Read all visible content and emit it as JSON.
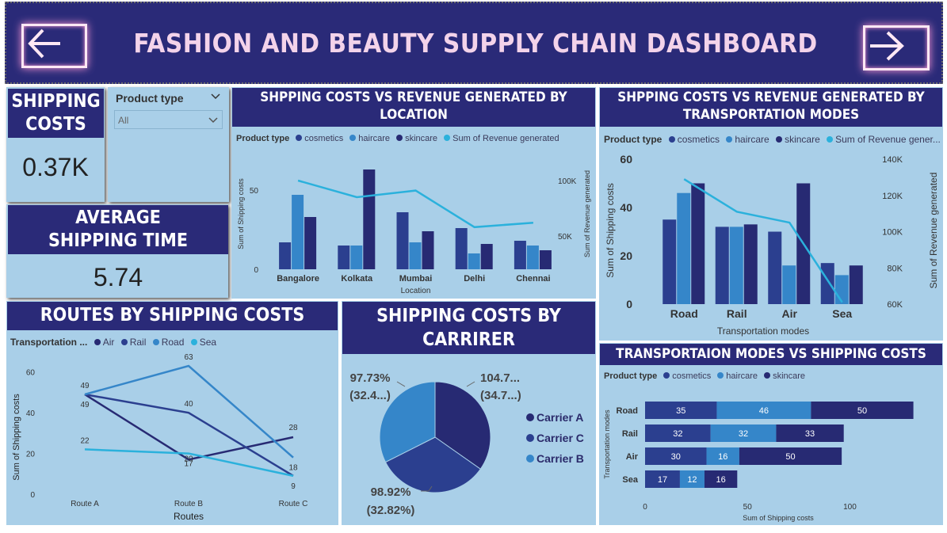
{
  "header": {
    "title": "FASHION AND BEAUTY SUPPLY CHAIN DASHBOARD",
    "back_icon": "arrow-left-icon",
    "next_icon": "arrow-right-icon"
  },
  "kpi_shipping": {
    "title": "SHIPPING COSTS",
    "value": "0.37K"
  },
  "kpi_time": {
    "title": "AVERAGE SHIPPING TIME",
    "value": "5.74"
  },
  "filter": {
    "label": "Product type",
    "value": "All"
  },
  "colors": {
    "cosmetics": "#2b3f8f",
    "haircare": "#3586c9",
    "skincare": "#272a73",
    "revenue": "#2bb1dc",
    "navy": "#2a2a78",
    "panel": "#a9cfe8"
  },
  "chart_data": [
    {
      "id": "location",
      "type": "bar",
      "title": "SHPPING COSTS VS REVENUE GENERATED BY LOCATION",
      "legend_title": "Product type",
      "legend": [
        "cosmetics",
        "haircare",
        "skincare",
        "Sum of Revenue generated"
      ],
      "categories": [
        "Bangalore",
        "Kolkata",
        "Mumbai",
        "Delhi",
        "Chennai"
      ],
      "series": [
        {
          "name": "cosmetics",
          "values": [
            17,
            15,
            36,
            26,
            18
          ]
        },
        {
          "name": "haircare",
          "values": [
            47,
            15,
            17,
            10,
            15
          ]
        },
        {
          "name": "skincare",
          "values": [
            33,
            63,
            24,
            16,
            12
          ]
        }
      ],
      "line": {
        "name": "Sum of Revenue generated",
        "values": [
          100000,
          85000,
          91000,
          58000,
          62000
        ]
      },
      "xlabel": "Location",
      "ylabel": "Sum of Shipping costs",
      "y2label": "Sum of Revenue generated",
      "yticks": [
        "0",
        "50"
      ],
      "y2ticks": [
        "50K",
        "100K"
      ],
      "ylim": [
        0,
        70
      ],
      "y2lim": [
        20000,
        120000
      ]
    },
    {
      "id": "transport",
      "type": "bar",
      "title": "SHPPING COSTS VS REVENUE GENERATED BY TRANSPORTATION MODES",
      "legend_title": "Product type",
      "legend": [
        "cosmetics",
        "haircare",
        "skincare",
        "Sum of Revenue gener..."
      ],
      "categories": [
        "Road",
        "Rail",
        "Air",
        "Sea"
      ],
      "series": [
        {
          "name": "cosmetics",
          "values": [
            35,
            32,
            30,
            17
          ]
        },
        {
          "name": "haircare",
          "values": [
            46,
            32,
            16,
            12
          ]
        },
        {
          "name": "skincare",
          "values": [
            50,
            33,
            50,
            16
          ]
        }
      ],
      "line": {
        "name": "Sum of Revenue generated",
        "values": [
          129000,
          111000,
          105000,
          61000
        ]
      },
      "xlabel": "Transportation modes",
      "ylabel": "Sum of Shipping costs",
      "y2label": "Sum of Revenue generated",
      "yticks": [
        "0",
        "20",
        "40",
        "60"
      ],
      "y2ticks": [
        "60K",
        "80K",
        "100K",
        "120K",
        "140K"
      ],
      "ylim": [
        0,
        60
      ],
      "y2lim": [
        60000,
        140000
      ]
    },
    {
      "id": "routes",
      "type": "line",
      "title": "ROUTES BY SHIPPING COSTS",
      "legend_title": "Transportation ...",
      "legend": [
        "Air",
        "Rail",
        "Road",
        "Sea"
      ],
      "categories": [
        "Route A",
        "Route B",
        "Route C"
      ],
      "series": [
        {
          "name": "Air",
          "values": [
            49,
            17,
            28
          ]
        },
        {
          "name": "Rail",
          "values": [
            49,
            40,
            9
          ]
        },
        {
          "name": "Road",
          "values": [
            49,
            63,
            18
          ]
        },
        {
          "name": "Sea",
          "values": [
            22,
            20,
            9
          ]
        }
      ],
      "point_labels": [
        "49",
        "49",
        "22",
        "63",
        "40",
        "17",
        "20",
        "28",
        "18",
        "9"
      ],
      "xlabel": "Routes",
      "ylabel": "Sum of Shipping costs",
      "yticks": [
        "0",
        "20",
        "40",
        "60"
      ],
      "ylim": [
        0,
        70
      ]
    },
    {
      "id": "carrier",
      "type": "pie",
      "title": "SHIPPING COSTS BY CARRIRER",
      "labels": [
        "Carrier A",
        "Carrier C",
        "Carrier B"
      ],
      "values": [
        104.7,
        98.92,
        97.73
      ],
      "value_labels": [
        "104.7...",
        "98.92%",
        "97.73%"
      ],
      "percent_labels": [
        "(34.7...)",
        "(32.82%)",
        "(32.4...)"
      ]
    },
    {
      "id": "modes",
      "type": "bar",
      "orientation": "horizontal-stacked",
      "title": "TRANSPORTAION MODES VS SHIPPING COSTS",
      "legend_title": "Product type",
      "legend": [
        "cosmetics",
        "haircare",
        "skincare"
      ],
      "categories": [
        "Road",
        "Rail",
        "Air",
        "Sea"
      ],
      "series": [
        {
          "name": "cosmetics",
          "values": [
            35,
            32,
            30,
            17
          ]
        },
        {
          "name": "haircare",
          "values": [
            46,
            32,
            16,
            12
          ]
        },
        {
          "name": "skincare",
          "values": [
            50,
            33,
            50,
            16
          ]
        }
      ],
      "xlabel": "Sum of Shipping costs",
      "ylabel": "Transportation modes",
      "xticks": [
        "0",
        "50",
        "100"
      ],
      "xlim": [
        0,
        130
      ]
    }
  ]
}
